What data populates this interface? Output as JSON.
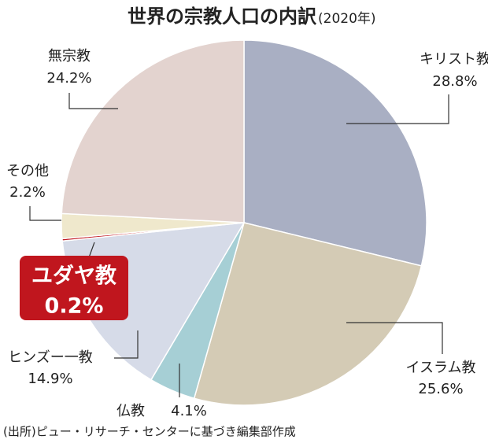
{
  "chart_data": {
    "type": "pie",
    "title": "世界の宗教人口の内訳",
    "subtitle": "(2020年)",
    "categories": [
      "キリスト教",
      "イスラム教",
      "仏教",
      "ヒンズー一教",
      "ユダヤ教",
      "その他",
      "無宗教"
    ],
    "values": [
      28.8,
      25.6,
      4.1,
      14.9,
      0.2,
      2.2,
      24.2
    ],
    "value_labels": [
      "28.8%",
      "25.6%",
      "4.1%",
      "14.9%",
      "0.2%",
      "2.2%",
      "24.2%"
    ],
    "colors": [
      "#a9afc3",
      "#d4cbb5",
      "#a6cfd5",
      "#d6dbe8",
      "#c0161e",
      "#efe8cc",
      "#e3d3cf"
    ],
    "source": "(出所)ピュー・リサーチ・センターに基づき編集部作成"
  }
}
